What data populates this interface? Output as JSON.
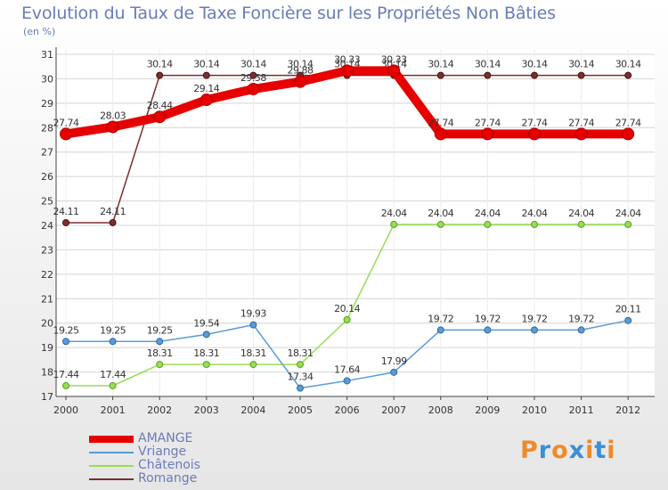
{
  "chart_data": {
    "type": "line",
    "title": "Evolution du Taux de Taxe Foncière sur les Propriétés Non Bâties",
    "ylabel": "(en %)",
    "xlabel": "",
    "categories": [
      "2000",
      "2001",
      "2002",
      "2003",
      "2004",
      "2005",
      "2006",
      "2007",
      "2008",
      "2009",
      "2010",
      "2011",
      "2012"
    ],
    "ylim": [
      17,
      31
    ],
    "yticks": [
      "17",
      "18",
      "19",
      "20",
      "21",
      "22",
      "23",
      "24",
      "25",
      "26",
      "27",
      "28",
      "29",
      "30",
      "31"
    ],
    "grid": "horizontal",
    "series": [
      {
        "name": "AMANGE",
        "color": "#e60000",
        "values": [
          27.74,
          28.03,
          28.44,
          29.14,
          29.58,
          29.88,
          30.33,
          30.33,
          27.74,
          27.74,
          27.74,
          27.74,
          27.74
        ],
        "labels": [
          "27.74",
          "28.03",
          "28.44",
          "29.14",
          "29.58",
          "29.88",
          "30.33",
          "30.33",
          "27.74",
          "27.74",
          "27.74",
          "27.74",
          "27.74"
        ]
      },
      {
        "name": "Vriange",
        "color": "#5b9bd5",
        "values": [
          19.25,
          19.25,
          19.25,
          19.54,
          19.93,
          17.34,
          17.64,
          17.99,
          19.72,
          19.72,
          19.72,
          19.72,
          20.11
        ],
        "labels": [
          "19.25",
          "19.25",
          "19.25",
          "19.54",
          "19.93",
          "17.34",
          "17.64",
          "17.99",
          "19.72",
          "19.72",
          "19.72",
          "19.72",
          "20.11"
        ]
      },
      {
        "name": "Châtenois",
        "color": "#99dd55",
        "values": [
          17.44,
          17.44,
          18.31,
          18.31,
          18.31,
          18.31,
          20.14,
          24.04,
          24.04,
          24.04,
          24.04,
          24.04,
          24.04
        ],
        "labels": [
          "17.44",
          "17.44",
          "18.31",
          "18.31",
          "18.31",
          "18.31",
          "20.14",
          "24.04",
          "24.04",
          "24.04",
          "24.04",
          "24.04",
          "24.04"
        ]
      },
      {
        "name": "Romange",
        "color": "#7a2e2e",
        "values": [
          24.11,
          24.11,
          30.14,
          30.14,
          30.14,
          30.14,
          30.14,
          30.14,
          30.14,
          30.14,
          30.14,
          30.14,
          30.14
        ],
        "labels": [
          "24.11",
          "24.11",
          "30.14",
          "30.14",
          "30.14",
          "30.14",
          "30.14",
          "30.14",
          "30.14",
          "30.14",
          "30.14",
          "30.14",
          "30.14"
        ]
      }
    ]
  },
  "logo": {
    "text": "Proxiti",
    "colors": [
      "#f08a24",
      "#3a8fd6",
      "#f08a24",
      "#3a8fd6",
      "#f08a24",
      "#3a8fd6",
      "#f08a24"
    ]
  }
}
